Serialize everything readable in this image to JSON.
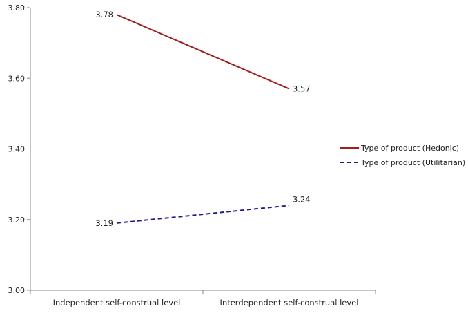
{
  "chart_data": {
    "type": "line",
    "categories": [
      "Independent self-construal level",
      "Interdependent self-construal level"
    ],
    "series": [
      {
        "name": "Type of product (Hedonic)",
        "values": [
          3.78,
          3.57
        ],
        "labels": [
          "3.78",
          "3.57"
        ],
        "color": "#a31d1d",
        "dashed": false
      },
      {
        "name": "Type of product (Utilitarian)",
        "values": [
          3.19,
          3.24
        ],
        "labels": [
          "3.19",
          "3.24"
        ],
        "color": "#1c1c8c",
        "dashed": true
      }
    ],
    "ylim": [
      3.0,
      3.8
    ],
    "yticks": [
      3.0,
      3.2,
      3.4,
      3.6,
      3.8
    ],
    "ytick_labels": [
      "3.00",
      "3.20",
      "3.40",
      "3.60",
      "3.80"
    ],
    "title": "",
    "xlabel": "",
    "ylabel": "",
    "grid": false,
    "legend": "right"
  }
}
